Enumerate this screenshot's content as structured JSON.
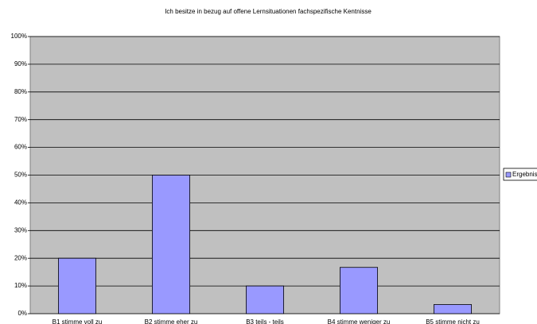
{
  "chart_data": {
    "type": "bar",
    "title": "Ich besitze in bezug auf offene Lernsituationen fachspezifische Kentnisse",
    "categories": [
      "B1 stimme voll zu",
      "B2 stimme eher zu",
      "B3 teils - teils",
      "B4 stimme weniger zu",
      "B5 stimme nicht zu"
    ],
    "series": [
      {
        "name": "Ergebnis",
        "color": "#9999ff",
        "values": [
          20,
          50,
          10,
          16.7,
          3.3
        ]
      }
    ],
    "ylim": [
      0,
      100
    ],
    "yticks": [
      {
        "value": 0,
        "label": "0%"
      },
      {
        "value": 10,
        "label": "10%"
      },
      {
        "value": 20,
        "label": "20%"
      },
      {
        "value": 30,
        "label": "30%"
      },
      {
        "value": 40,
        "label": "40%"
      },
      {
        "value": 50,
        "label": "50%"
      },
      {
        "value": 60,
        "label": "60%"
      },
      {
        "value": 70,
        "label": "70%"
      },
      {
        "value": 80,
        "label": "80%"
      },
      {
        "value": 90,
        "label": "90%"
      },
      {
        "value": 100,
        "label": "100%"
      }
    ],
    "grid": true,
    "legend": "right"
  }
}
